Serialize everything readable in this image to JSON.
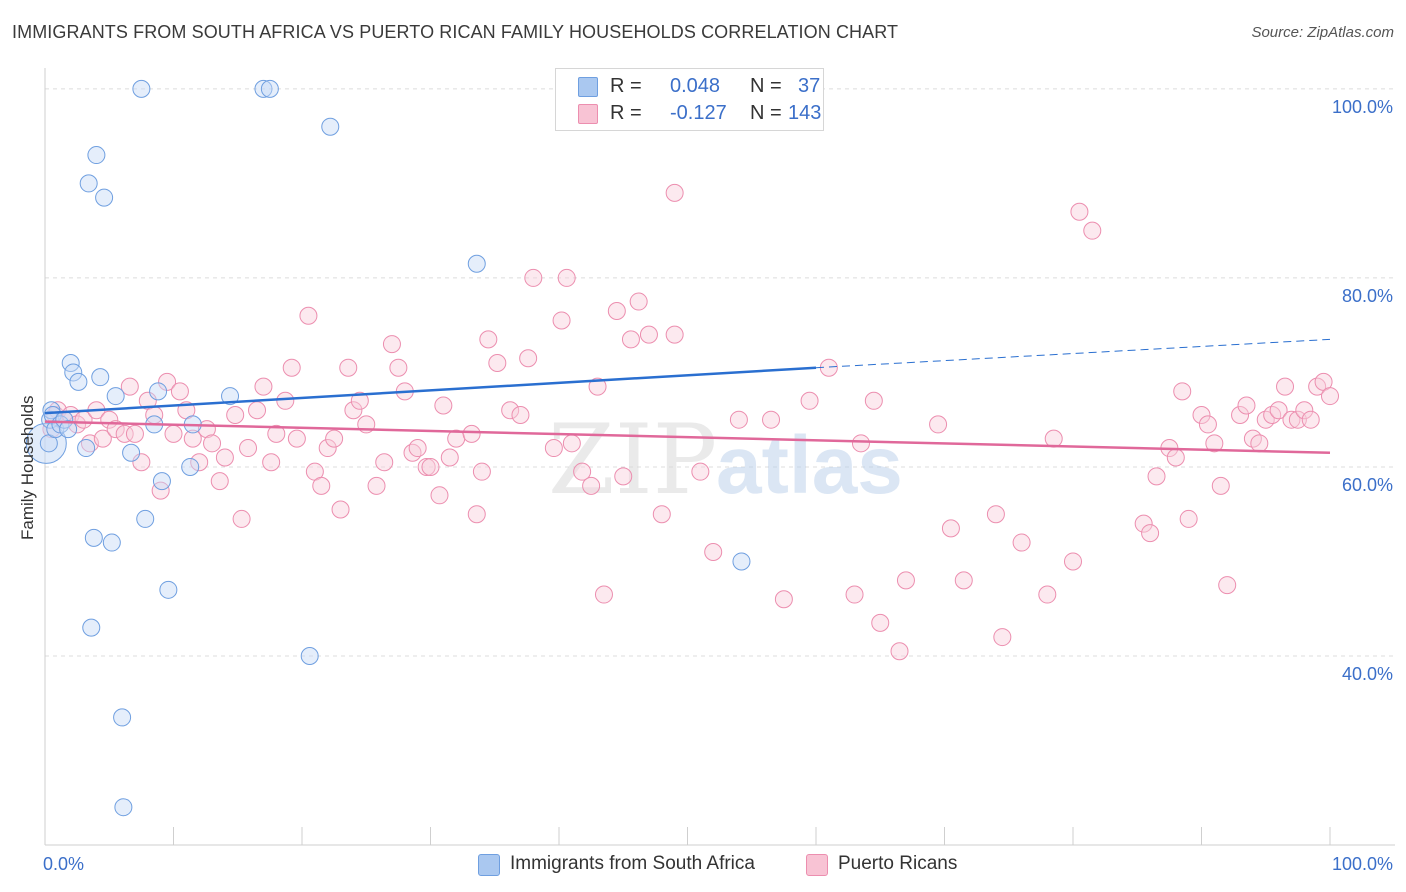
{
  "title": "IMMIGRANTS FROM SOUTH AFRICA VS PUERTO RICAN FAMILY HOUSEHOLDS CORRELATION CHART",
  "source": "Source: ZipAtlas.com",
  "watermark": {
    "zip": "ZIP",
    "atlas": "atlas"
  },
  "legend_top": [
    {
      "r_label": "R =",
      "r_value": "0.048",
      "n_label": "N =",
      "n_value": "37",
      "color": "#aac8f0",
      "border": "#6f9fe0"
    },
    {
      "r_label": "R =",
      "r_value": "-0.127",
      "n_label": "N =",
      "n_value": "143",
      "color": "#f8c3d4",
      "border": "#ec8eaf"
    }
  ],
  "legend_bottom": [
    {
      "label": "Immigrants from South Africa",
      "color": "#aac8f0",
      "border": "#6f9fe0"
    },
    {
      "label": "Puerto Ricans",
      "color": "#f8c3d4",
      "border": "#ec8eaf"
    }
  ],
  "chart_data": {
    "type": "scatter",
    "title": "IMMIGRANTS FROM SOUTH AFRICA VS PUERTO RICAN FAMILY HOUSEHOLDS CORRELATION CHART",
    "xlabel": "",
    "ylabel": "Family Households",
    "x_tick_labels": [
      "0.0%",
      "100.0%"
    ],
    "y_tick_labels": [
      "40.0%",
      "60.0%",
      "80.0%",
      "100.0%"
    ],
    "y_ticks": [
      40,
      60,
      80,
      100
    ],
    "xlim": [
      0,
      100
    ],
    "ylim": [
      20,
      102
    ],
    "grid": true,
    "series": [
      {
        "name": "Immigrants from South Africa",
        "color": "#6f9fe0",
        "fill": "#c6daf6",
        "trend": {
          "x": [
            0,
            60
          ],
          "y": [
            65.7,
            70.5
          ],
          "dashed_to": [
            100,
            73.5
          ],
          "color": "#2a6fd0"
        },
        "points": [
          [
            0.3,
            62.5
          ],
          [
            0.4,
            65
          ],
          [
            0.5,
            66
          ],
          [
            0.6,
            65.5
          ],
          [
            0.8,
            64
          ],
          [
            1.2,
            64.5
          ],
          [
            1.5,
            65
          ],
          [
            1.8,
            64
          ],
          [
            2,
            71
          ],
          [
            2.2,
            70
          ],
          [
            2.6,
            69
          ],
          [
            3.2,
            62
          ],
          [
            3.4,
            90
          ],
          [
            3.8,
            52.5
          ],
          [
            3.6,
            43
          ],
          [
            4,
            93
          ],
          [
            4.3,
            69.5
          ],
          [
            4.6,
            88.5
          ],
          [
            5.2,
            52
          ],
          [
            5.5,
            67.5
          ],
          [
            6,
            33.5
          ],
          [
            6.1,
            24
          ],
          [
            6.7,
            61.5
          ],
          [
            7.5,
            100
          ],
          [
            7.8,
            54.5
          ],
          [
            8.5,
            64.5
          ],
          [
            8.8,
            68
          ],
          [
            9.1,
            58.5
          ],
          [
            9.6,
            47
          ],
          [
            11.3,
            60
          ],
          [
            11.5,
            64.5
          ],
          [
            14.4,
            67.5
          ],
          [
            17,
            100
          ],
          [
            17.5,
            100
          ],
          [
            20.6,
            40
          ],
          [
            22.2,
            96
          ],
          [
            33.6,
            81.5
          ],
          [
            54.2,
            50
          ]
        ],
        "big_point": [
          0.1,
          62.5
        ]
      },
      {
        "name": "Puerto Ricans",
        "color": "#ec8eaf",
        "fill": "#f8cfdc",
        "trend": {
          "x": [
            0,
            100
          ],
          "y": [
            64.8,
            61.5
          ],
          "color": "#e0689a"
        },
        "points": [
          [
            0.5,
            64
          ],
          [
            0.8,
            65.5
          ],
          [
            1,
            66
          ],
          [
            1.5,
            65
          ],
          [
            2,
            65.5
          ],
          [
            2.5,
            64.5
          ],
          [
            3,
            65
          ],
          [
            3.5,
            62.5
          ],
          [
            4,
            66
          ],
          [
            4.5,
            63
          ],
          [
            5,
            65
          ],
          [
            5.5,
            64
          ],
          [
            6.2,
            63.5
          ],
          [
            6.6,
            68.5
          ],
          [
            7,
            63.5
          ],
          [
            7.5,
            60.5
          ],
          [
            8,
            67
          ],
          [
            8.5,
            65.5
          ],
          [
            9,
            57.5
          ],
          [
            9.5,
            69
          ],
          [
            10,
            63.5
          ],
          [
            10.5,
            68
          ],
          [
            11,
            66
          ],
          [
            11.5,
            63
          ],
          [
            12,
            60.5
          ],
          [
            12.6,
            64
          ],
          [
            13,
            62.5
          ],
          [
            13.6,
            58.5
          ],
          [
            14,
            61
          ],
          [
            14.8,
            65.5
          ],
          [
            15.3,
            54.5
          ],
          [
            15.8,
            62
          ],
          [
            16.5,
            66
          ],
          [
            17,
            68.5
          ],
          [
            17.6,
            60.5
          ],
          [
            18,
            63.5
          ],
          [
            18.7,
            67
          ],
          [
            19.2,
            70.5
          ],
          [
            19.6,
            63
          ],
          [
            20.5,
            76
          ],
          [
            21,
            59.5
          ],
          [
            21.5,
            58
          ],
          [
            22,
            62
          ],
          [
            22.5,
            63
          ],
          [
            23,
            55.5
          ],
          [
            23.6,
            70.5
          ],
          [
            24,
            66
          ],
          [
            24.5,
            67
          ],
          [
            25,
            64.5
          ],
          [
            25.8,
            58
          ],
          [
            26.4,
            60.5
          ],
          [
            27,
            73
          ],
          [
            27.5,
            70.5
          ],
          [
            28,
            68
          ],
          [
            28.6,
            61.5
          ],
          [
            29,
            62
          ],
          [
            29.7,
            60
          ],
          [
            30,
            60
          ],
          [
            30.7,
            57
          ],
          [
            31,
            66.5
          ],
          [
            31.5,
            61
          ],
          [
            32,
            63
          ],
          [
            33.2,
            63.5
          ],
          [
            33.6,
            55
          ],
          [
            34,
            59.5
          ],
          [
            34.5,
            73.5
          ],
          [
            35.2,
            71
          ],
          [
            36.2,
            66
          ],
          [
            37,
            65.5
          ],
          [
            37.6,
            71.5
          ],
          [
            38,
            80
          ],
          [
            39.6,
            62
          ],
          [
            40.2,
            75.5
          ],
          [
            40.6,
            80
          ],
          [
            41,
            62.5
          ],
          [
            41.8,
            59.5
          ],
          [
            42.5,
            58
          ],
          [
            43,
            68.5
          ],
          [
            43.5,
            46.5
          ],
          [
            44.5,
            76.5
          ],
          [
            45,
            59
          ],
          [
            45.6,
            73.5
          ],
          [
            46.2,
            77.5
          ],
          [
            47,
            74
          ],
          [
            48,
            55
          ],
          [
            49,
            89
          ],
          [
            49,
            74
          ],
          [
            51,
            59.5
          ],
          [
            52,
            51
          ],
          [
            54,
            65
          ],
          [
            56.5,
            65
          ],
          [
            57.5,
            46
          ],
          [
            59.5,
            67
          ],
          [
            61,
            70.5
          ],
          [
            63,
            46.5
          ],
          [
            63.5,
            62.5
          ],
          [
            64.5,
            67
          ],
          [
            65,
            43.5
          ],
          [
            66.5,
            40.5
          ],
          [
            67,
            48
          ],
          [
            69.5,
            64.5
          ],
          [
            70.5,
            53.5
          ],
          [
            71.5,
            48
          ],
          [
            74,
            55
          ],
          [
            74.5,
            42
          ],
          [
            76,
            52
          ],
          [
            78,
            46.5
          ],
          [
            78.5,
            63
          ],
          [
            80,
            50
          ],
          [
            80.5,
            87
          ],
          [
            81.5,
            85
          ],
          [
            85.5,
            54
          ],
          [
            86,
            53
          ],
          [
            86.5,
            59
          ],
          [
            87.5,
            62
          ],
          [
            88,
            61
          ],
          [
            88.5,
            68
          ],
          [
            89,
            54.5
          ],
          [
            90,
            65.5
          ],
          [
            90.5,
            64.5
          ],
          [
            91,
            62.5
          ],
          [
            91.5,
            58
          ],
          [
            92,
            47.5
          ],
          [
            93,
            65.5
          ],
          [
            93.5,
            66.5
          ],
          [
            94,
            63
          ],
          [
            94.5,
            62.5
          ],
          [
            95,
            65
          ],
          [
            95.5,
            65.5
          ],
          [
            96,
            66
          ],
          [
            96.5,
            68.5
          ],
          [
            97,
            65
          ],
          [
            97.5,
            65
          ],
          [
            98,
            66
          ],
          [
            98.5,
            65
          ],
          [
            99,
            68.5
          ],
          [
            99.5,
            69
          ],
          [
            100,
            67.5
          ]
        ]
      }
    ]
  }
}
